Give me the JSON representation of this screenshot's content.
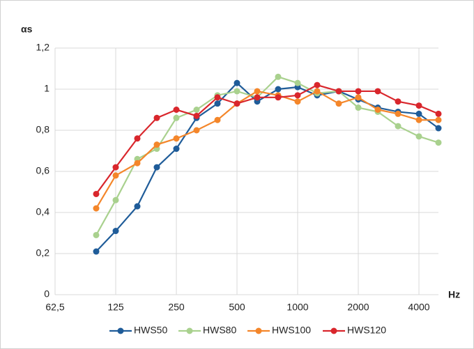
{
  "chart_data": {
    "type": "line",
    "ylabel": "αs",
    "xlabel": "Hz",
    "x": [
      100,
      125,
      160,
      200,
      250,
      315,
      400,
      500,
      630,
      800,
      1000,
      1250,
      1600,
      2000,
      2500,
      3150,
      4000,
      5000
    ],
    "series": [
      {
        "name": "HWS50",
        "color": "#1f5c99",
        "values": [
          0.21,
          0.31,
          0.43,
          0.62,
          0.71,
          0.86,
          0.93,
          1.03,
          0.94,
          1.0,
          1.01,
          0.97,
          0.99,
          0.95,
          0.91,
          0.89,
          0.88,
          0.81
        ]
      },
      {
        "name": "HWS80",
        "color": "#a9d18e",
        "values": [
          0.29,
          0.46,
          0.66,
          0.71,
          0.86,
          0.9,
          0.97,
          0.99,
          0.96,
          1.06,
          1.03,
          0.98,
          0.99,
          0.91,
          0.89,
          0.82,
          0.77,
          0.74
        ]
      },
      {
        "name": "HWS100",
        "color": "#f4862a",
        "values": [
          0.42,
          0.58,
          0.64,
          0.73,
          0.76,
          0.8,
          0.85,
          0.93,
          0.99,
          0.97,
          0.94,
          0.99,
          0.93,
          0.96,
          0.9,
          0.88,
          0.85,
          0.85
        ]
      },
      {
        "name": "HWS120",
        "color": "#d9262c",
        "values": [
          0.49,
          0.62,
          0.76,
          0.86,
          0.9,
          0.87,
          0.96,
          0.93,
          0.96,
          0.96,
          0.97,
          1.02,
          0.99,
          0.99,
          0.99,
          0.94,
          0.92,
          0.88
        ]
      }
    ],
    "xscale": "log",
    "xlim": [
      62.5,
      5000
    ],
    "xticks": [
      {
        "value": 62.5,
        "label": "62,5"
      },
      125,
      250,
      500,
      1000,
      2000,
      4000
    ],
    "ylim": [
      0,
      1.2
    ],
    "yticks": [
      0,
      {
        "value": 0.2,
        "label": "0,2"
      },
      {
        "value": 0.4,
        "label": "0,4"
      },
      {
        "value": 0.6,
        "label": "0,6"
      },
      {
        "value": 0.8,
        "label": "0,8"
      },
      1,
      {
        "value": 1.2,
        "label": "1,2"
      }
    ],
    "grid": true,
    "legend": "bottom"
  }
}
